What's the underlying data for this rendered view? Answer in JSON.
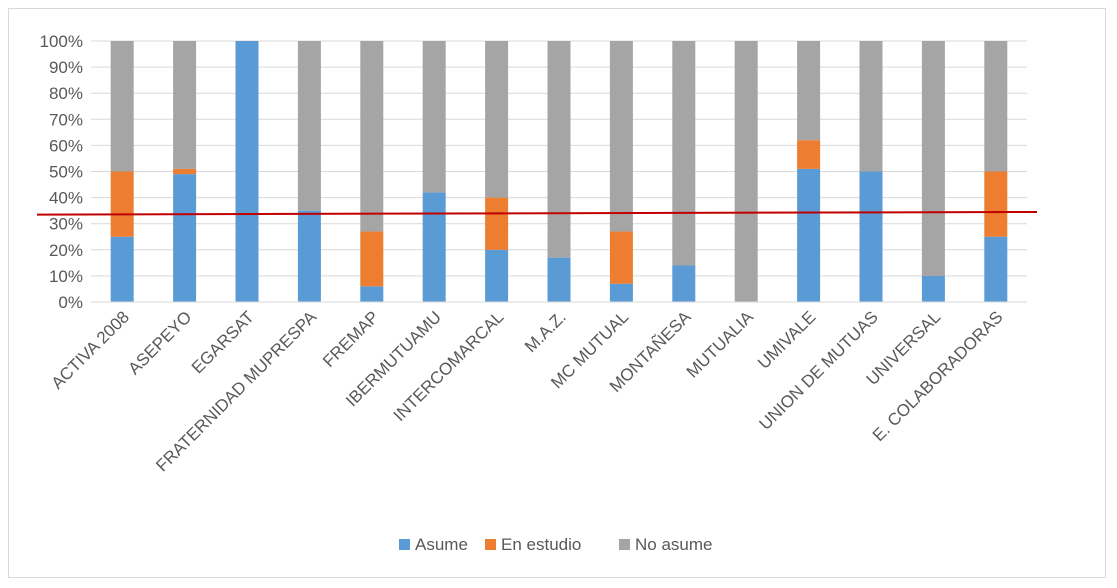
{
  "chart_data": {
    "type": "bar",
    "stacked": true,
    "percent_stacked": true,
    "categories": [
      "ACTIVA 2008",
      "ASEPEYO",
      "EGARSAT",
      "FRATERNIDAD MUPRESPA",
      "FREMAP",
      "IBERMUTUAMU",
      "INTERCOMARCAL",
      "M.A.Z.",
      "MC MUTUAL",
      "MONTAÑESA",
      "MUTUALIA",
      "UMIVALE",
      "UNION DE MUTUAS",
      "UNIVERSAL",
      "E. COLABORADORAS"
    ],
    "series": [
      {
        "name": "Asume",
        "color": "#5b9bd5",
        "values": [
          25,
          49,
          100,
          35,
          6,
          42,
          20,
          17,
          7,
          14,
          0,
          51,
          50,
          10,
          25
        ]
      },
      {
        "name": "En estudio",
        "color": "#ed7d31",
        "values": [
          25,
          2,
          0,
          0,
          21,
          0,
          20,
          0,
          20,
          0,
          0,
          11,
          0,
          0,
          25
        ]
      },
      {
        "name": "No asume",
        "color": "#a5a5a5",
        "values": [
          50,
          49,
          0,
          65,
          73,
          58,
          60,
          83,
          73,
          86,
          100,
          38,
          50,
          90,
          50
        ]
      }
    ],
    "y_ticks": [
      "0%",
      "10%",
      "20%",
      "30%",
      "40%",
      "50%",
      "60%",
      "70%",
      "80%",
      "90%",
      "100%"
    ],
    "ylim": [
      0,
      100
    ],
    "reference_line": {
      "color": "#c00000",
      "y_start": 33.5,
      "y_end": 34.5
    },
    "grid": true,
    "legend_position": "bottom",
    "title": "",
    "xlabel": "",
    "ylabel": ""
  }
}
